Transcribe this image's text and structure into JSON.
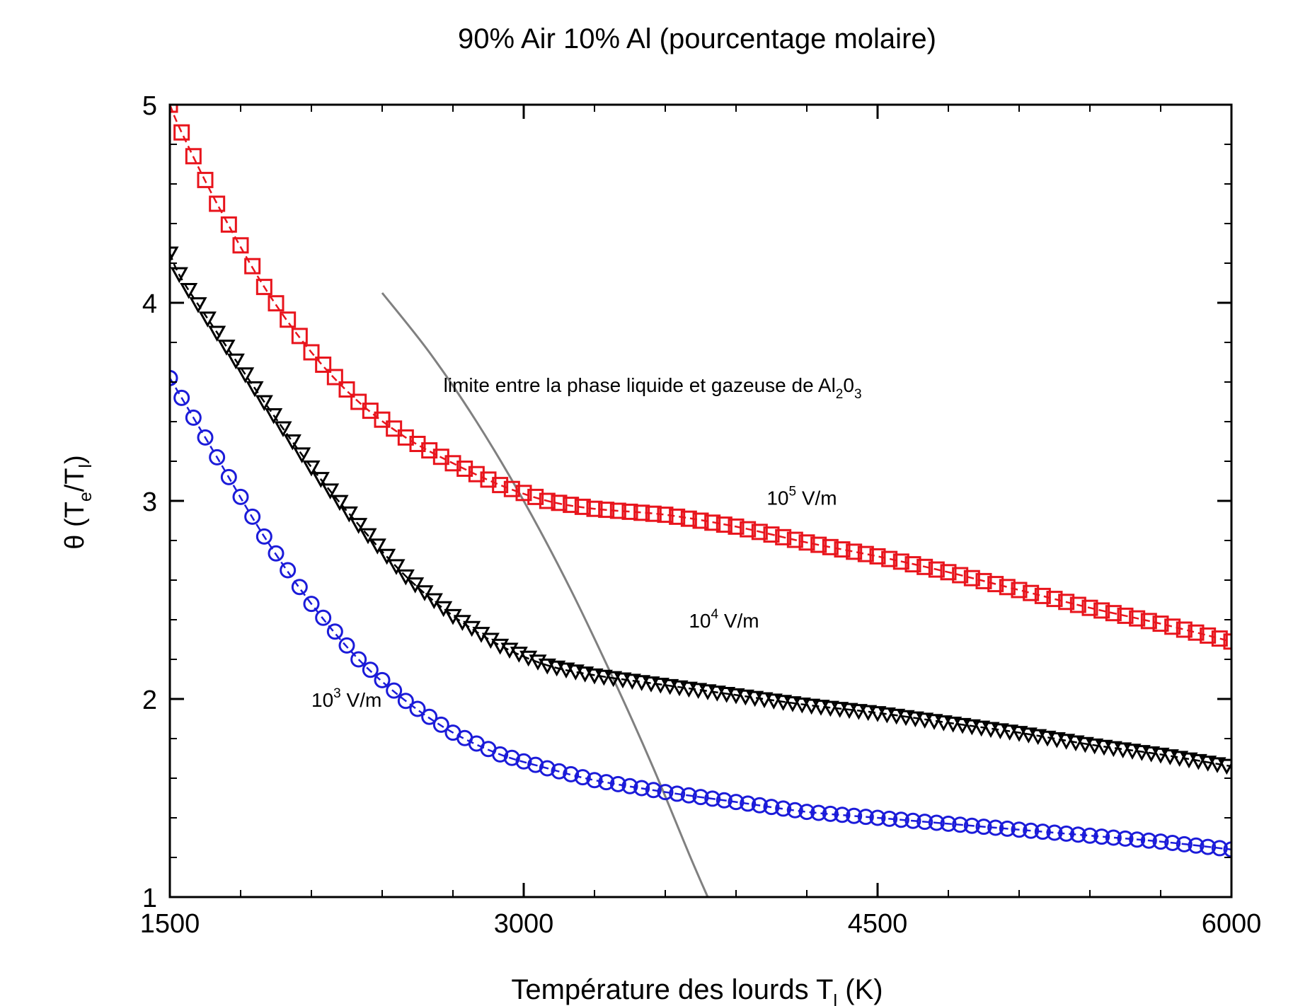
{
  "chart_data": {
    "type": "scatter",
    "title": "90% Air 10% Al (pourcentage molaire)",
    "xlabel": {
      "main": "Température des lourds T",
      "sub": "l",
      "unit": " (K)"
    },
    "ylabel": {
      "theta": "θ",
      "open": " (T",
      "sub_e": "e",
      "slash": "/T",
      "sub_l": "l",
      "close": ")"
    },
    "xlim": [
      1500,
      6000
    ],
    "ylim": [
      1,
      5
    ],
    "xticks": [
      1500,
      3000,
      4500,
      6000
    ],
    "yticks": [
      1,
      2,
      3,
      4,
      5
    ],
    "x_minor_step": 300,
    "y_minor_step": 0.2,
    "grid": false,
    "legend": "none",
    "series": [
      {
        "field": "10^5 V/m",
        "marker": "square",
        "color": "#e8141c",
        "x_start": 1500,
        "x_step": 50,
        "x_end": 6000,
        "curve": [
          [
            1500,
            5.0
          ],
          [
            1550,
            4.86
          ],
          [
            1700,
            4.5
          ],
          [
            1900,
            4.08
          ],
          [
            2100,
            3.75
          ],
          [
            2300,
            3.5
          ],
          [
            2500,
            3.32
          ],
          [
            2700,
            3.19
          ],
          [
            2900,
            3.08
          ],
          [
            3100,
            3.0
          ],
          [
            3300,
            2.96
          ],
          [
            3600,
            2.93
          ],
          [
            3900,
            2.87
          ],
          [
            4200,
            2.79
          ],
          [
            4500,
            2.72
          ],
          [
            4800,
            2.64
          ],
          [
            5100,
            2.55
          ],
          [
            5400,
            2.46
          ],
          [
            5700,
            2.38
          ],
          [
            6000,
            2.29
          ]
        ]
      },
      {
        "field": "10^4 V/m",
        "marker": "triangle-down",
        "color": "#000000",
        "x_start": 1500,
        "x_step": 40,
        "x_end": 6000,
        "curve": [
          [
            1500,
            4.25
          ],
          [
            1550,
            4.12
          ],
          [
            1700,
            3.85
          ],
          [
            1900,
            3.5
          ],
          [
            2100,
            3.17
          ],
          [
            2300,
            2.88
          ],
          [
            2500,
            2.62
          ],
          [
            2700,
            2.42
          ],
          [
            2900,
            2.27
          ],
          [
            3100,
            2.17
          ],
          [
            3300,
            2.12
          ],
          [
            3600,
            2.07
          ],
          [
            3900,
            2.02
          ],
          [
            4200,
            1.97
          ],
          [
            4500,
            1.93
          ],
          [
            4800,
            1.88
          ],
          [
            5100,
            1.83
          ],
          [
            5400,
            1.77
          ],
          [
            5700,
            1.72
          ],
          [
            6000,
            1.66
          ]
        ]
      },
      {
        "field": "10^3 V/m",
        "marker": "circle",
        "color": "#1b1bd9",
        "x_start": 1500,
        "x_step": 50,
        "x_end": 6000,
        "curve": [
          [
            1500,
            3.62
          ],
          [
            1550,
            3.52
          ],
          [
            1700,
            3.22
          ],
          [
            1900,
            2.82
          ],
          [
            2100,
            2.48
          ],
          [
            2300,
            2.2
          ],
          [
            2500,
            1.99
          ],
          [
            2700,
            1.83
          ],
          [
            2900,
            1.72
          ],
          [
            3100,
            1.65
          ],
          [
            3300,
            1.59
          ],
          [
            3600,
            1.53
          ],
          [
            3900,
            1.48
          ],
          [
            4200,
            1.43
          ],
          [
            4500,
            1.4
          ],
          [
            4800,
            1.37
          ],
          [
            5100,
            1.34
          ],
          [
            5400,
            1.31
          ],
          [
            5700,
            1.28
          ],
          [
            6000,
            1.24
          ]
        ]
      }
    ],
    "phase_limit_curve": {
      "color": "#808080",
      "points": [
        [
          2400,
          4.05
        ],
        [
          2600,
          3.75
        ],
        [
          2800,
          3.4
        ],
        [
          3000,
          3.0
        ],
        [
          3200,
          2.55
        ],
        [
          3400,
          2.05
        ],
        [
          3550,
          1.65
        ],
        [
          3700,
          1.22
        ],
        [
          3780,
          1.0
        ]
      ]
    },
    "annotations": [
      {
        "id": "limit",
        "parts": [
          "limite entre la phase liquide et gazeuse de Al",
          "2",
          "0",
          "3"
        ],
        "x": 2660,
        "y": 3.55
      },
      {
        "id": "e5",
        "base": "10",
        "exp": "5",
        "unit": " V/m",
        "x": 4030,
        "y": 2.98
      },
      {
        "id": "e4",
        "base": "10",
        "exp": "4",
        "unit": " V/m",
        "x": 3700,
        "y": 2.36
      },
      {
        "id": "e3",
        "base": "10",
        "exp": "3",
        "unit": " V/m",
        "x": 2100,
        "y": 1.96
      }
    ]
  }
}
